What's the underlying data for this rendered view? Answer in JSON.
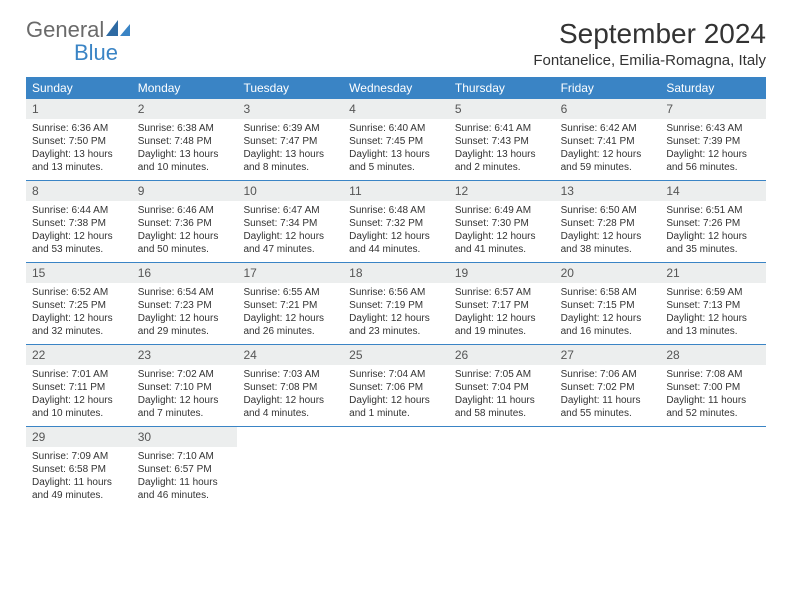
{
  "brand": {
    "word1": "General",
    "word2": "Blue"
  },
  "title": "September 2024",
  "location": "Fontanelice, Emilia-Romagna, Italy",
  "colors": {
    "header_bg": "#3a84c5",
    "header_text": "#ffffff",
    "daynum_bg": "#eceeee",
    "week_border": "#3a84c5",
    "body_text": "#333333",
    "logo_gray": "#6a6a6a",
    "logo_blue": "#3a84c5",
    "page_bg": "#ffffff"
  },
  "typography": {
    "title_fontsize": 28,
    "location_fontsize": 15,
    "weekday_fontsize": 12,
    "daynum_fontsize": 12,
    "cell_fontsize": 10
  },
  "weekdays": [
    "Sunday",
    "Monday",
    "Tuesday",
    "Wednesday",
    "Thursday",
    "Friday",
    "Saturday"
  ],
  "weeks": [
    [
      {
        "n": "1",
        "sr": "Sunrise: 6:36 AM",
        "ss": "Sunset: 7:50 PM",
        "dl1": "Daylight: 13 hours",
        "dl2": "and 13 minutes."
      },
      {
        "n": "2",
        "sr": "Sunrise: 6:38 AM",
        "ss": "Sunset: 7:48 PM",
        "dl1": "Daylight: 13 hours",
        "dl2": "and 10 minutes."
      },
      {
        "n": "3",
        "sr": "Sunrise: 6:39 AM",
        "ss": "Sunset: 7:47 PM",
        "dl1": "Daylight: 13 hours",
        "dl2": "and 8 minutes."
      },
      {
        "n": "4",
        "sr": "Sunrise: 6:40 AM",
        "ss": "Sunset: 7:45 PM",
        "dl1": "Daylight: 13 hours",
        "dl2": "and 5 minutes."
      },
      {
        "n": "5",
        "sr": "Sunrise: 6:41 AM",
        "ss": "Sunset: 7:43 PM",
        "dl1": "Daylight: 13 hours",
        "dl2": "and 2 minutes."
      },
      {
        "n": "6",
        "sr": "Sunrise: 6:42 AM",
        "ss": "Sunset: 7:41 PM",
        "dl1": "Daylight: 12 hours",
        "dl2": "and 59 minutes."
      },
      {
        "n": "7",
        "sr": "Sunrise: 6:43 AM",
        "ss": "Sunset: 7:39 PM",
        "dl1": "Daylight: 12 hours",
        "dl2": "and 56 minutes."
      }
    ],
    [
      {
        "n": "8",
        "sr": "Sunrise: 6:44 AM",
        "ss": "Sunset: 7:38 PM",
        "dl1": "Daylight: 12 hours",
        "dl2": "and 53 minutes."
      },
      {
        "n": "9",
        "sr": "Sunrise: 6:46 AM",
        "ss": "Sunset: 7:36 PM",
        "dl1": "Daylight: 12 hours",
        "dl2": "and 50 minutes."
      },
      {
        "n": "10",
        "sr": "Sunrise: 6:47 AM",
        "ss": "Sunset: 7:34 PM",
        "dl1": "Daylight: 12 hours",
        "dl2": "and 47 minutes."
      },
      {
        "n": "11",
        "sr": "Sunrise: 6:48 AM",
        "ss": "Sunset: 7:32 PM",
        "dl1": "Daylight: 12 hours",
        "dl2": "and 44 minutes."
      },
      {
        "n": "12",
        "sr": "Sunrise: 6:49 AM",
        "ss": "Sunset: 7:30 PM",
        "dl1": "Daylight: 12 hours",
        "dl2": "and 41 minutes."
      },
      {
        "n": "13",
        "sr": "Sunrise: 6:50 AM",
        "ss": "Sunset: 7:28 PM",
        "dl1": "Daylight: 12 hours",
        "dl2": "and 38 minutes."
      },
      {
        "n": "14",
        "sr": "Sunrise: 6:51 AM",
        "ss": "Sunset: 7:26 PM",
        "dl1": "Daylight: 12 hours",
        "dl2": "and 35 minutes."
      }
    ],
    [
      {
        "n": "15",
        "sr": "Sunrise: 6:52 AM",
        "ss": "Sunset: 7:25 PM",
        "dl1": "Daylight: 12 hours",
        "dl2": "and 32 minutes."
      },
      {
        "n": "16",
        "sr": "Sunrise: 6:54 AM",
        "ss": "Sunset: 7:23 PM",
        "dl1": "Daylight: 12 hours",
        "dl2": "and 29 minutes."
      },
      {
        "n": "17",
        "sr": "Sunrise: 6:55 AM",
        "ss": "Sunset: 7:21 PM",
        "dl1": "Daylight: 12 hours",
        "dl2": "and 26 minutes."
      },
      {
        "n": "18",
        "sr": "Sunrise: 6:56 AM",
        "ss": "Sunset: 7:19 PM",
        "dl1": "Daylight: 12 hours",
        "dl2": "and 23 minutes."
      },
      {
        "n": "19",
        "sr": "Sunrise: 6:57 AM",
        "ss": "Sunset: 7:17 PM",
        "dl1": "Daylight: 12 hours",
        "dl2": "and 19 minutes."
      },
      {
        "n": "20",
        "sr": "Sunrise: 6:58 AM",
        "ss": "Sunset: 7:15 PM",
        "dl1": "Daylight: 12 hours",
        "dl2": "and 16 minutes."
      },
      {
        "n": "21",
        "sr": "Sunrise: 6:59 AM",
        "ss": "Sunset: 7:13 PM",
        "dl1": "Daylight: 12 hours",
        "dl2": "and 13 minutes."
      }
    ],
    [
      {
        "n": "22",
        "sr": "Sunrise: 7:01 AM",
        "ss": "Sunset: 7:11 PM",
        "dl1": "Daylight: 12 hours",
        "dl2": "and 10 minutes."
      },
      {
        "n": "23",
        "sr": "Sunrise: 7:02 AM",
        "ss": "Sunset: 7:10 PM",
        "dl1": "Daylight: 12 hours",
        "dl2": "and 7 minutes."
      },
      {
        "n": "24",
        "sr": "Sunrise: 7:03 AM",
        "ss": "Sunset: 7:08 PM",
        "dl1": "Daylight: 12 hours",
        "dl2": "and 4 minutes."
      },
      {
        "n": "25",
        "sr": "Sunrise: 7:04 AM",
        "ss": "Sunset: 7:06 PM",
        "dl1": "Daylight: 12 hours",
        "dl2": "and 1 minute."
      },
      {
        "n": "26",
        "sr": "Sunrise: 7:05 AM",
        "ss": "Sunset: 7:04 PM",
        "dl1": "Daylight: 11 hours",
        "dl2": "and 58 minutes."
      },
      {
        "n": "27",
        "sr": "Sunrise: 7:06 AM",
        "ss": "Sunset: 7:02 PM",
        "dl1": "Daylight: 11 hours",
        "dl2": "and 55 minutes."
      },
      {
        "n": "28",
        "sr": "Sunrise: 7:08 AM",
        "ss": "Sunset: 7:00 PM",
        "dl1": "Daylight: 11 hours",
        "dl2": "and 52 minutes."
      }
    ],
    [
      {
        "n": "29",
        "sr": "Sunrise: 7:09 AM",
        "ss": "Sunset: 6:58 PM",
        "dl1": "Daylight: 11 hours",
        "dl2": "and 49 minutes."
      },
      {
        "n": "30",
        "sr": "Sunrise: 7:10 AM",
        "ss": "Sunset: 6:57 PM",
        "dl1": "Daylight: 11 hours",
        "dl2": "and 46 minutes."
      },
      {
        "empty": true
      },
      {
        "empty": true
      },
      {
        "empty": true
      },
      {
        "empty": true
      },
      {
        "empty": true
      }
    ]
  ]
}
